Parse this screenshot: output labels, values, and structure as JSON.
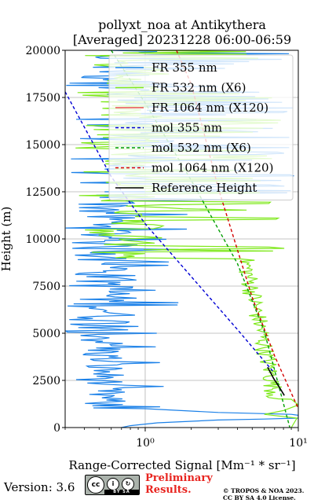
{
  "chart_data": {
    "type": "line",
    "title_line1": "pollyxt_noa at Antikythera",
    "title_line2": "[Averaged] 20231228 06:00-06:59",
    "ylabel": "Height (m)",
    "xlabel": "Range-Corrected Signal [Mm⁻¹ * sr⁻¹]",
    "x_scale": "log",
    "xlim": [
      0.3,
      10
    ],
    "ylim": [
      0,
      20000
    ],
    "y_ticks": [
      "0",
      "2500",
      "5000",
      "7500",
      "10000",
      "12500",
      "15000",
      "17500",
      "20000"
    ],
    "x_ticks": [
      {
        "label": "10⁰",
        "value": 1
      },
      {
        "label": "10¹",
        "value": 10
      }
    ],
    "grid": true,
    "legend_position": "top-right",
    "series": [
      {
        "name": "FR 355 nm",
        "color": "#1a80e8",
        "style": "solid",
        "kind": "noisy_blue"
      },
      {
        "name": "FR 532 nm (X6)",
        "color": "#7ee81a",
        "style": "solid",
        "kind": "noisy_green"
      },
      {
        "name": "FR 1064 nm (X120)",
        "color": "#e85050",
        "style": "solid",
        "kind": "none"
      },
      {
        "name": "mol 355 nm",
        "color": "#0000d4",
        "style": "dashed",
        "x": [
          0.3,
          0.6,
          1,
          2,
          4,
          6.8
        ],
        "y": [
          17800,
          13300,
          10800,
          8000,
          5200,
          3000
        ]
      },
      {
        "name": "mol 532 nm (X6)",
        "color": "#009e00",
        "style": "dashed",
        "x": [
          0.6,
          1,
          2,
          4,
          6,
          8.8
        ],
        "y": [
          20000,
          17200,
          13100,
          8700,
          5100,
          0
        ]
      },
      {
        "name": "mol 1064 nm (X120)",
        "color": "#d40000",
        "style": "dashed",
        "x": [
          1.6,
          2,
          3,
          5,
          7,
          10
        ],
        "y": [
          20000,
          18200,
          12700,
          6900,
          3800,
          1000
        ]
      },
      {
        "name": "Reference Height",
        "color": "#000000",
        "style": "solid",
        "x": [
          6.3,
          6.6,
          6.9,
          7.3,
          7.7,
          8.1
        ],
        "y": [
          3200,
          2900,
          2600,
          2300,
          2000,
          1700
        ]
      }
    ]
  },
  "footer": {
    "version": "Version: 3.6",
    "cc_text": "cc",
    "cc_by": "BY",
    "cc_sa": "SA",
    "preliminary_line1": "Preliminary",
    "preliminary_line2": "Results.",
    "copyright_line1": "© TROPOS & NOA 2023.",
    "copyright_line2": "CC BY SA 4.0 License."
  }
}
